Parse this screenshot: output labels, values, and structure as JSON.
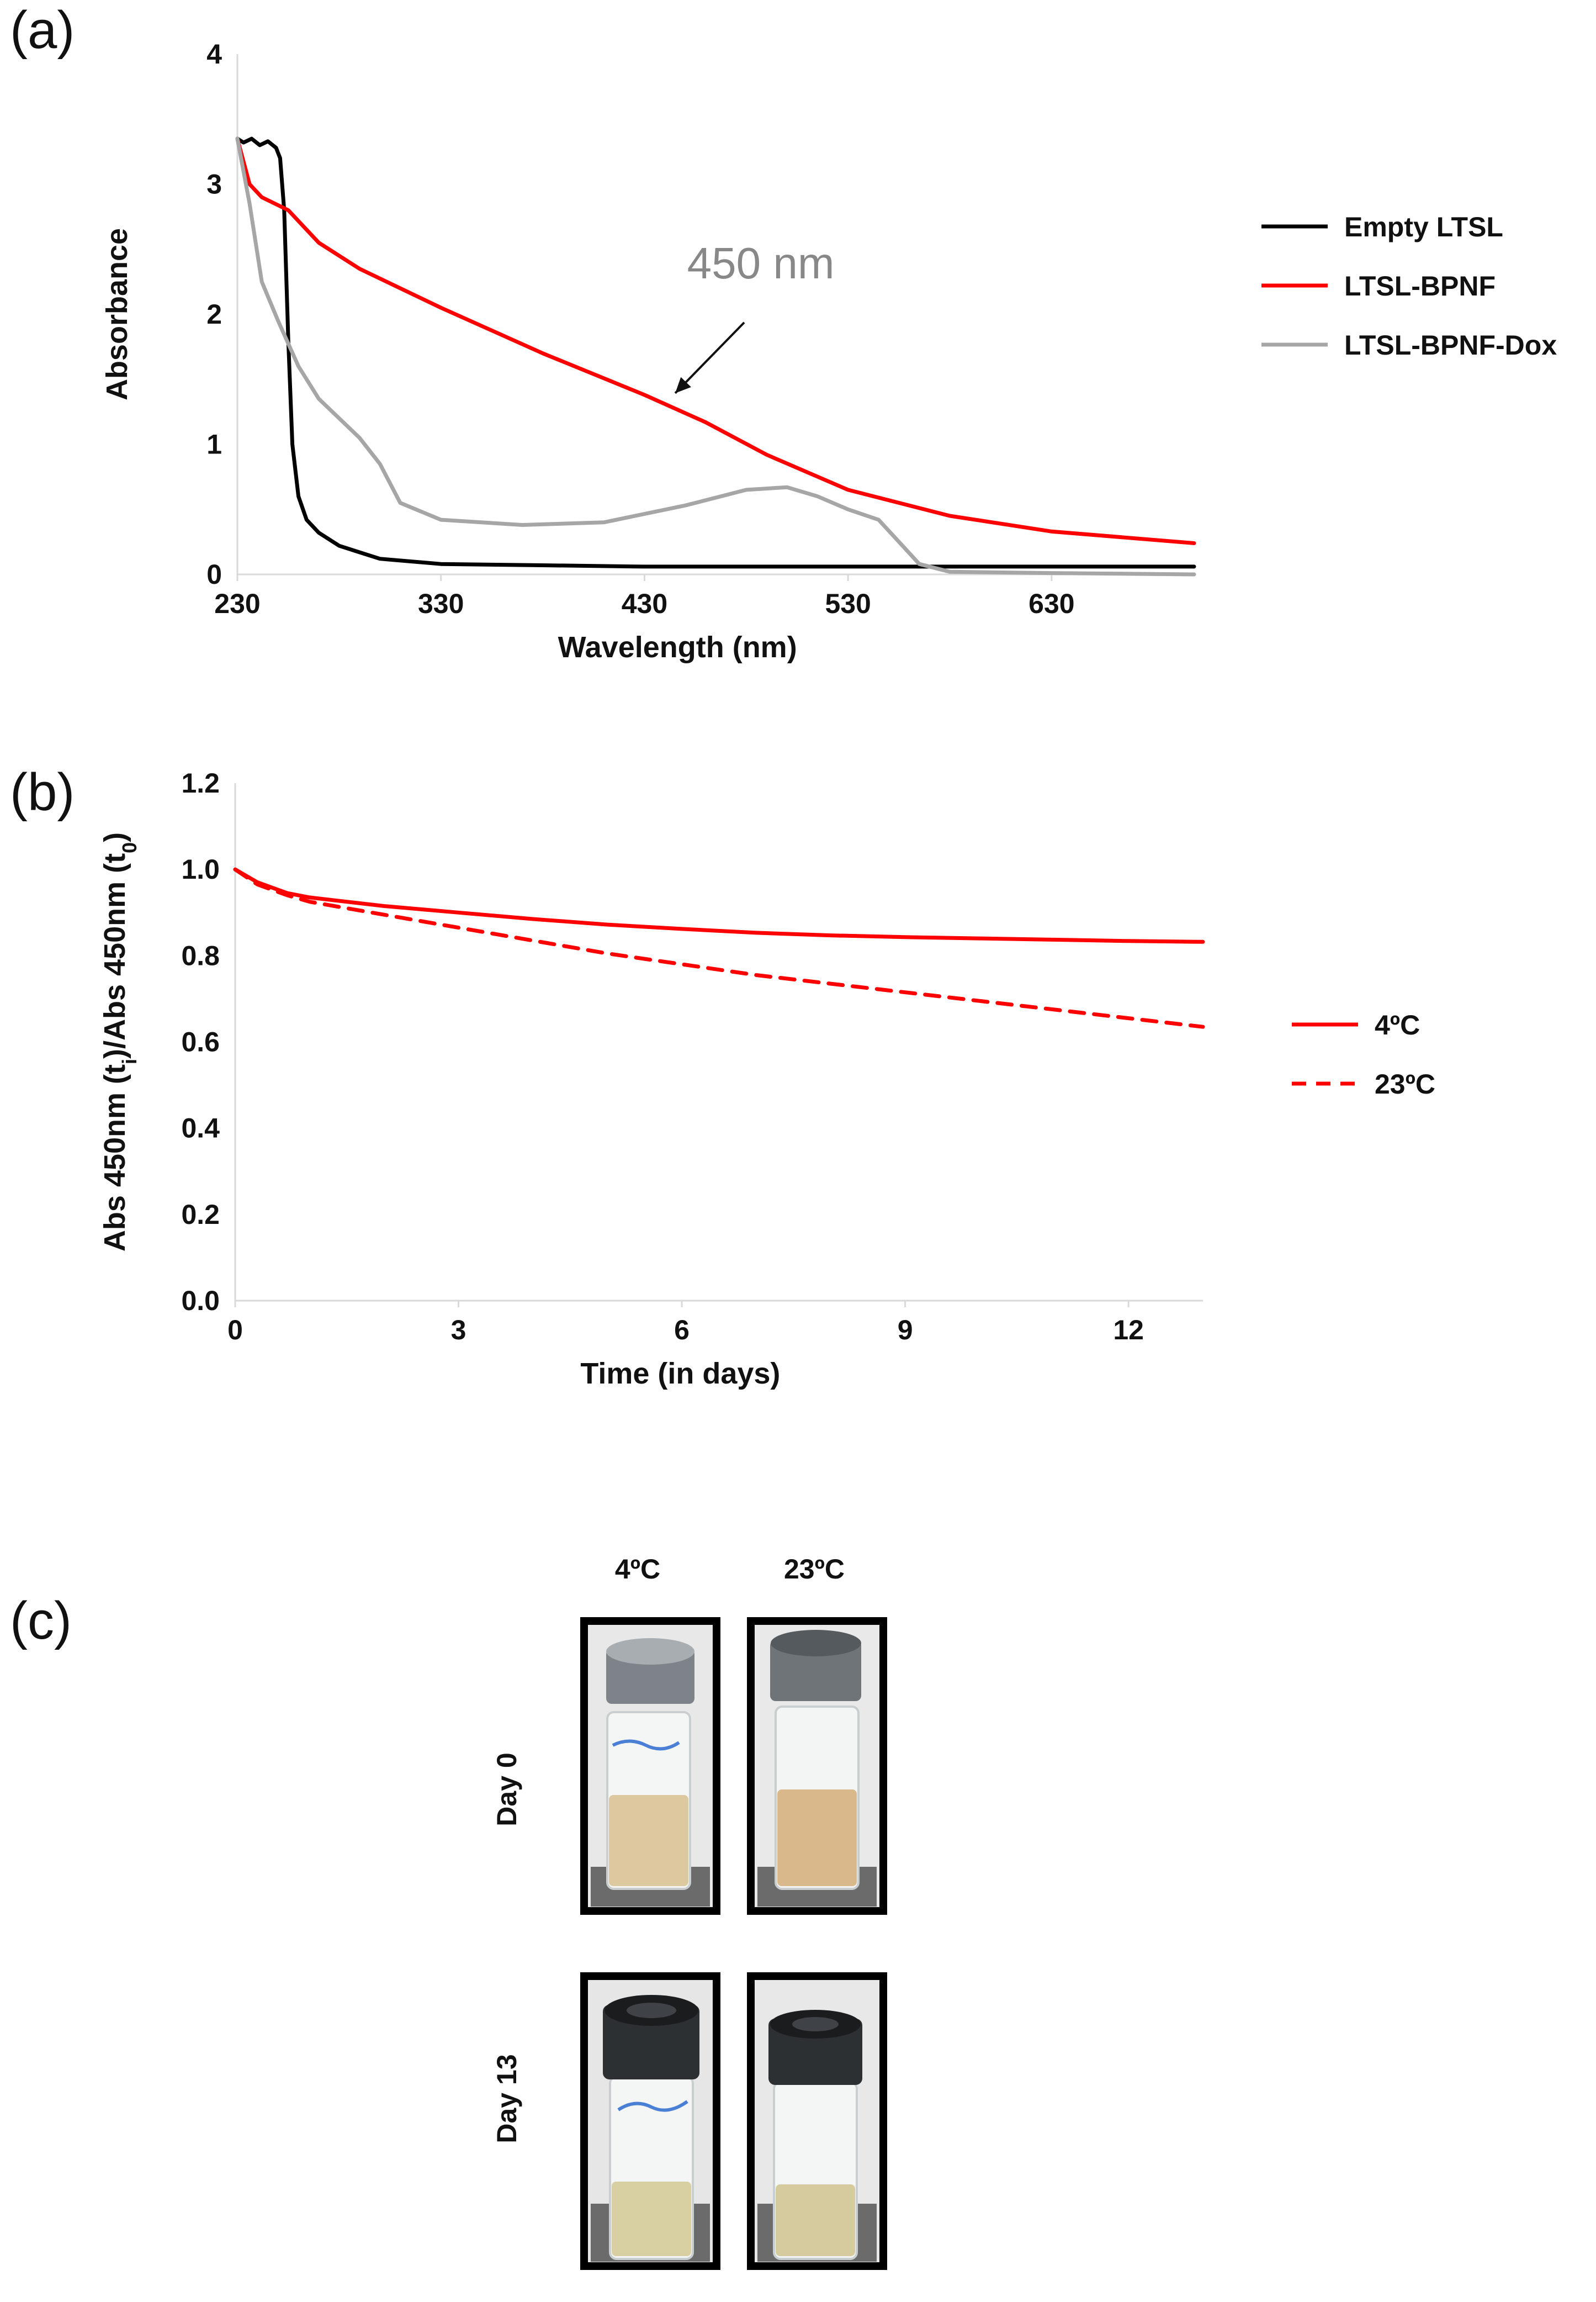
{
  "panel_labels": {
    "a": "(a)",
    "b": "(b)",
    "c": "(c)"
  },
  "chart_data": [
    {
      "id": "a",
      "type": "line",
      "xlabel": "Wavelength (nm)",
      "ylabel": "Absorbance",
      "xlim": [
        230,
        700
      ],
      "ylim": [
        0,
        4
      ],
      "xticks": [
        230,
        330,
        430,
        530,
        630
      ],
      "yticks": [
        0,
        1,
        2,
        3,
        4
      ],
      "annotation": {
        "text": "450 nm",
        "x": 460,
        "y": 1.3
      },
      "series": [
        {
          "name": "Empty LTSL",
          "color": "#000000",
          "dash": "solid",
          "x": [
            230,
            233,
            237,
            241,
            245,
            249,
            251,
            253,
            255,
            257,
            260,
            264,
            270,
            280,
            300,
            330,
            380,
            430,
            530,
            630,
            700
          ],
          "y": [
            3.35,
            3.32,
            3.35,
            3.3,
            3.33,
            3.28,
            3.2,
            2.8,
            1.8,
            1.0,
            0.6,
            0.42,
            0.32,
            0.22,
            0.12,
            0.08,
            0.07,
            0.06,
            0.06,
            0.06,
            0.06
          ]
        },
        {
          "name": "LTSL-BPNF",
          "color": "#ff0000",
          "dash": "solid",
          "x": [
            230,
            236,
            242,
            255,
            270,
            290,
            330,
            380,
            430,
            460,
            490,
            530,
            580,
            630,
            700
          ],
          "y": [
            3.35,
            3.0,
            2.9,
            2.8,
            2.55,
            2.35,
            2.05,
            1.7,
            1.38,
            1.17,
            0.92,
            0.65,
            0.45,
            0.33,
            0.24
          ]
        },
        {
          "name": "LTSL-BPNF-Dox",
          "color": "#a6a6a6",
          "dash": "solid",
          "x": [
            230,
            236,
            242,
            250,
            260,
            270,
            290,
            300,
            310,
            330,
            370,
            410,
            450,
            480,
            500,
            515,
            530,
            545,
            555,
            565,
            580,
            630,
            700
          ],
          "y": [
            3.35,
            2.85,
            2.25,
            1.95,
            1.6,
            1.35,
            1.05,
            0.85,
            0.55,
            0.42,
            0.38,
            0.4,
            0.53,
            0.65,
            0.67,
            0.6,
            0.5,
            0.42,
            0.25,
            0.08,
            0.02,
            0.01,
            0.0
          ]
        }
      ]
    },
    {
      "id": "b",
      "type": "line",
      "xlabel": "Time (in days)",
      "ylabel_parts": [
        "Abs 450nm (t",
        "i",
        ")/Abs  450nm (t",
        "0",
        ")"
      ],
      "xlim": [
        0,
        13
      ],
      "ylim": [
        0,
        1.2
      ],
      "xticks": [
        0,
        3,
        6,
        9,
        12
      ],
      "yticks": [
        "0.0",
        "0.2",
        "0.4",
        "0.6",
        "0.8",
        "1.0",
        "1.2"
      ],
      "series": [
        {
          "name": "4ºC",
          "color": "#ff0000",
          "dash": "solid",
          "x": [
            0,
            0.3,
            0.7,
            1,
            2,
            3,
            4,
            5,
            6,
            7,
            8,
            9,
            10,
            11,
            12,
            13
          ],
          "y": [
            1.0,
            0.97,
            0.945,
            0.935,
            0.915,
            0.9,
            0.885,
            0.872,
            0.862,
            0.853,
            0.847,
            0.843,
            0.84,
            0.837,
            0.834,
            0.832
          ]
        },
        {
          "name": "23ºC",
          "color": "#ff0000",
          "dash": "dashed",
          "x": [
            0,
            0.3,
            0.7,
            1,
            2,
            3,
            4,
            5,
            6,
            7,
            8,
            9,
            10,
            11,
            12,
            13
          ],
          "y": [
            1.0,
            0.965,
            0.94,
            0.925,
            0.895,
            0.865,
            0.835,
            0.805,
            0.78,
            0.755,
            0.735,
            0.715,
            0.695,
            0.675,
            0.655,
            0.635
          ]
        }
      ]
    }
  ],
  "vials": {
    "columns": [
      "4ºC",
      "23ºC"
    ],
    "rows": [
      "Day 0",
      "Day 13"
    ]
  }
}
